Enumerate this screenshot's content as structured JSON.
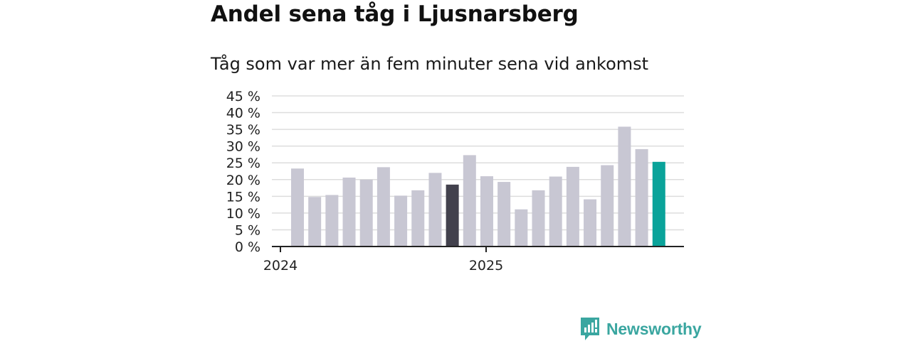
{
  "title": "Andel sena tåg i Ljusnarsberg",
  "subtitle": "Tåg som var mer än fem minuter sena vid ankomst",
  "brand": {
    "name": "Newsworthy",
    "icon": "newsworthy-logo-icon",
    "color": "#3aa6a0"
  },
  "colors": {
    "bar": "#c8c7d3",
    "highlight_dark": "#42414d",
    "highlight_current": "#0aa39a",
    "grid": "#dddddd",
    "axis": "#222222"
  },
  "chart_data": {
    "type": "bar",
    "title": "Andel sena tåg i Ljusnarsberg",
    "subtitle": "Tåg som var mer än fem minuter sena vid ankomst",
    "ylim": [
      0,
      45
    ],
    "yticks": [
      "0 %",
      "5 %",
      "10 %",
      "15 %",
      "20 %",
      "25 %",
      "30 %",
      "35 %",
      "40 %",
      "45 %"
    ],
    "ytick_values": [
      0,
      5,
      10,
      15,
      20,
      25,
      30,
      35,
      40,
      45
    ],
    "xtick_labels": [
      {
        "label": "2024",
        "at_index": 0
      },
      {
        "label": "2025",
        "at_index": 12
      }
    ],
    "grid": true,
    "values": [
      23.3,
      14.8,
      15.4,
      20.6,
      20.0,
      23.7,
      15.2,
      16.8,
      22.0,
      18.5,
      27.3,
      21.0,
      19.3,
      11.1,
      16.8,
      20.9,
      23.8,
      14.1,
      24.3,
      35.8,
      29.1,
      25.3
    ],
    "highlight": {
      "dark_index": 9,
      "current_index": 21
    }
  }
}
